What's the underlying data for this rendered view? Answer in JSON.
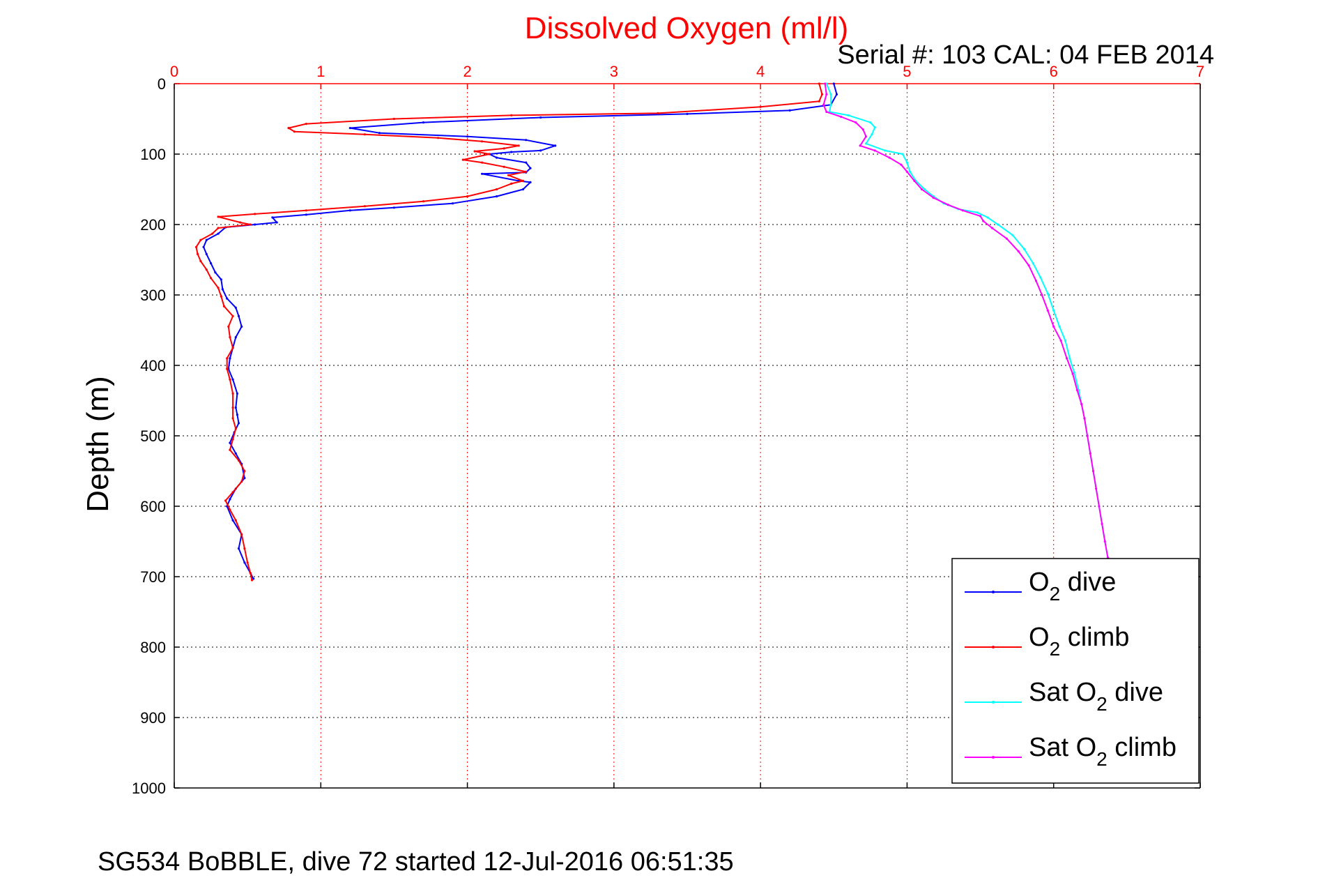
{
  "chart_data": {
    "type": "line",
    "title": "Dissolved Oxygen (ml/l)",
    "subtitle": "Serial #: 103  CAL: 04 FEB 2014",
    "ylabel": "Depth (m)",
    "footer": "SG534 BoBBLE, dive 72 started 12-Jul-2016 06:51:35",
    "xlim": [
      0,
      7
    ],
    "ylim": [
      0,
      1000
    ],
    "y_reversed": true,
    "x_axis_position": "top",
    "x_ticks": [
      "0",
      "1",
      "2",
      "3",
      "4",
      "5",
      "6",
      "7"
    ],
    "y_ticks": [
      "0",
      "100",
      "200",
      "300",
      "400",
      "500",
      "600",
      "700",
      "800",
      "900",
      "1000"
    ],
    "grid": true,
    "legend_position": "bottom-right",
    "colors": {
      "title": "#ff0000",
      "x_ticks": "#ff0000",
      "grid_x": "#ff0000",
      "grid_y": "#000000"
    },
    "series": [
      {
        "name": "O2 dive",
        "legend_main": "O",
        "legend_sub": "2",
        "legend_after": " dive",
        "color": "#0000ff",
        "points": [
          [
            4.5,
            0
          ],
          [
            4.52,
            15
          ],
          [
            4.48,
            30
          ],
          [
            4.2,
            38
          ],
          [
            3.5,
            43
          ],
          [
            2.5,
            48
          ],
          [
            1.7,
            55
          ],
          [
            1.2,
            63
          ],
          [
            1.4,
            70
          ],
          [
            2.0,
            75
          ],
          [
            2.4,
            80
          ],
          [
            2.6,
            88
          ],
          [
            2.5,
            95
          ],
          [
            2.3,
            97
          ],
          [
            2.15,
            100
          ],
          [
            2.2,
            105
          ],
          [
            2.4,
            112
          ],
          [
            2.43,
            120
          ],
          [
            2.4,
            126
          ],
          [
            2.1,
            128
          ],
          [
            2.35,
            138
          ],
          [
            2.43,
            140
          ],
          [
            2.38,
            150
          ],
          [
            2.2,
            160
          ],
          [
            1.9,
            170
          ],
          [
            1.5,
            176
          ],
          [
            1.2,
            180
          ],
          [
            0.9,
            186
          ],
          [
            0.67,
            190
          ],
          [
            0.7,
            197
          ],
          [
            0.55,
            200
          ],
          [
            0.35,
            204
          ],
          [
            0.3,
            213
          ],
          [
            0.22,
            222
          ],
          [
            0.2,
            232
          ],
          [
            0.22,
            242
          ],
          [
            0.25,
            255
          ],
          [
            0.28,
            268
          ],
          [
            0.32,
            278
          ],
          [
            0.33,
            292
          ],
          [
            0.36,
            305
          ],
          [
            0.42,
            318
          ],
          [
            0.44,
            330
          ],
          [
            0.46,
            345
          ],
          [
            0.42,
            360
          ],
          [
            0.4,
            375
          ],
          [
            0.38,
            390
          ],
          [
            0.37,
            405
          ],
          [
            0.4,
            420
          ],
          [
            0.43,
            440
          ],
          [
            0.42,
            460
          ],
          [
            0.43,
            470
          ],
          [
            0.44,
            482
          ],
          [
            0.41,
            495
          ],
          [
            0.38,
            510
          ],
          [
            0.42,
            525
          ],
          [
            0.46,
            540
          ],
          [
            0.48,
            560
          ],
          [
            0.42,
            575
          ],
          [
            0.38,
            590
          ],
          [
            0.36,
            600
          ],
          [
            0.4,
            620
          ],
          [
            0.46,
            640
          ],
          [
            0.44,
            660
          ],
          [
            0.48,
            680
          ],
          [
            0.52,
            695
          ],
          [
            0.54,
            703
          ]
        ]
      },
      {
        "name": "O2 climb",
        "legend_main": "O",
        "legend_sub": "2",
        "legend_after": " climb",
        "color": "#ff0000",
        "points": [
          [
            4.4,
            0
          ],
          [
            4.42,
            15
          ],
          [
            4.4,
            25
          ],
          [
            4.0,
            33
          ],
          [
            3.3,
            42
          ],
          [
            2.3,
            45
          ],
          [
            1.5,
            50
          ],
          [
            0.9,
            57
          ],
          [
            0.78,
            63
          ],
          [
            0.82,
            68
          ],
          [
            1.3,
            72
          ],
          [
            1.8,
            77
          ],
          [
            2.1,
            82
          ],
          [
            2.35,
            88
          ],
          [
            2.25,
            92
          ],
          [
            2.05,
            96
          ],
          [
            2.15,
            100
          ],
          [
            1.97,
            108
          ],
          [
            2.1,
            112
          ],
          [
            2.25,
            118
          ],
          [
            2.4,
            125
          ],
          [
            2.28,
            130
          ],
          [
            2.38,
            138
          ],
          [
            2.3,
            142
          ],
          [
            2.2,
            150
          ],
          [
            2.0,
            160
          ],
          [
            1.7,
            167
          ],
          [
            1.3,
            174
          ],
          [
            0.9,
            180
          ],
          [
            0.55,
            185
          ],
          [
            0.3,
            189
          ],
          [
            0.45,
            197
          ],
          [
            0.52,
            200
          ],
          [
            0.3,
            205
          ],
          [
            0.26,
            213
          ],
          [
            0.18,
            222
          ],
          [
            0.15,
            232
          ],
          [
            0.16,
            242
          ],
          [
            0.18,
            252
          ],
          [
            0.22,
            264
          ],
          [
            0.25,
            276
          ],
          [
            0.3,
            290
          ],
          [
            0.32,
            302
          ],
          [
            0.34,
            316
          ],
          [
            0.4,
            330
          ],
          [
            0.37,
            345
          ],
          [
            0.38,
            360
          ],
          [
            0.4,
            375
          ],
          [
            0.36,
            390
          ],
          [
            0.36,
            405
          ],
          [
            0.38,
            420
          ],
          [
            0.4,
            440
          ],
          [
            0.4,
            460
          ],
          [
            0.4,
            475
          ],
          [
            0.42,
            490
          ],
          [
            0.4,
            505
          ],
          [
            0.38,
            520
          ],
          [
            0.44,
            535
          ],
          [
            0.48,
            550
          ],
          [
            0.46,
            565
          ],
          [
            0.4,
            580
          ],
          [
            0.35,
            592
          ],
          [
            0.38,
            605
          ],
          [
            0.42,
            620
          ],
          [
            0.46,
            640
          ],
          [
            0.48,
            660
          ],
          [
            0.5,
            680
          ],
          [
            0.52,
            695
          ],
          [
            0.53,
            705
          ]
        ]
      },
      {
        "name": "Sat O2 dive",
        "legend_main": "Sat O",
        "legend_sub": "2",
        "legend_after": " dive",
        "color": "#00ffff",
        "points": [
          [
            4.45,
            0
          ],
          [
            4.48,
            15
          ],
          [
            4.48,
            30
          ],
          [
            4.47,
            40
          ],
          [
            4.6,
            45
          ],
          [
            4.75,
            55
          ],
          [
            4.78,
            62
          ],
          [
            4.76,
            72
          ],
          [
            4.72,
            85
          ],
          [
            4.85,
            95
          ],
          [
            4.97,
            100
          ],
          [
            5.0,
            112
          ],
          [
            5.02,
            125
          ],
          [
            5.06,
            138
          ],
          [
            5.12,
            150
          ],
          [
            5.18,
            160
          ],
          [
            5.25,
            170
          ],
          [
            5.35,
            178
          ],
          [
            5.48,
            183
          ],
          [
            5.55,
            190
          ],
          [
            5.62,
            200
          ],
          [
            5.72,
            215
          ],
          [
            5.8,
            235
          ],
          [
            5.86,
            255
          ],
          [
            5.91,
            275
          ],
          [
            5.96,
            298
          ],
          [
            6.0,
            322
          ],
          [
            6.04,
            345
          ],
          [
            6.08,
            365
          ],
          [
            6.11,
            390
          ],
          [
            6.14,
            410
          ],
          [
            6.17,
            435
          ],
          [
            6.19,
            455
          ],
          [
            6.21,
            475
          ],
          [
            6.23,
            500
          ],
          [
            6.25,
            525
          ],
          [
            6.27,
            550
          ],
          [
            6.29,
            575
          ],
          [
            6.31,
            600
          ],
          [
            6.33,
            625
          ],
          [
            6.35,
            650
          ],
          [
            6.37,
            673
          ]
        ]
      },
      {
        "name": "Sat O2 climb",
        "legend_main": "Sat O",
        "legend_sub": "2",
        "legend_after": " climb",
        "color": "#ff00ff",
        "points": [
          [
            4.44,
            0
          ],
          [
            4.45,
            15
          ],
          [
            4.43,
            30
          ],
          [
            4.45,
            40
          ],
          [
            4.55,
            47
          ],
          [
            4.65,
            55
          ],
          [
            4.7,
            65
          ],
          [
            4.72,
            75
          ],
          [
            4.68,
            88
          ],
          [
            4.78,
            95
          ],
          [
            4.88,
            105
          ],
          [
            4.96,
            115
          ],
          [
            5.0,
            125
          ],
          [
            5.05,
            138
          ],
          [
            5.1,
            150
          ],
          [
            5.18,
            162
          ],
          [
            5.28,
            172
          ],
          [
            5.38,
            180
          ],
          [
            5.5,
            188
          ],
          [
            5.52,
            195
          ],
          [
            5.58,
            205
          ],
          [
            5.68,
            220
          ],
          [
            5.76,
            238
          ],
          [
            5.83,
            258
          ],
          [
            5.88,
            280
          ],
          [
            5.92,
            300
          ],
          [
            5.96,
            322
          ],
          [
            6.0,
            345
          ],
          [
            6.05,
            365
          ],
          [
            6.09,
            390
          ],
          [
            6.13,
            412
          ],
          [
            6.16,
            435
          ],
          [
            6.19,
            455
          ],
          [
            6.21,
            475
          ],
          [
            6.23,
            500
          ],
          [
            6.25,
            525
          ],
          [
            6.27,
            550
          ],
          [
            6.29,
            575
          ],
          [
            6.31,
            600
          ],
          [
            6.33,
            625
          ],
          [
            6.35,
            650
          ],
          [
            6.37,
            673
          ]
        ]
      }
    ]
  }
}
